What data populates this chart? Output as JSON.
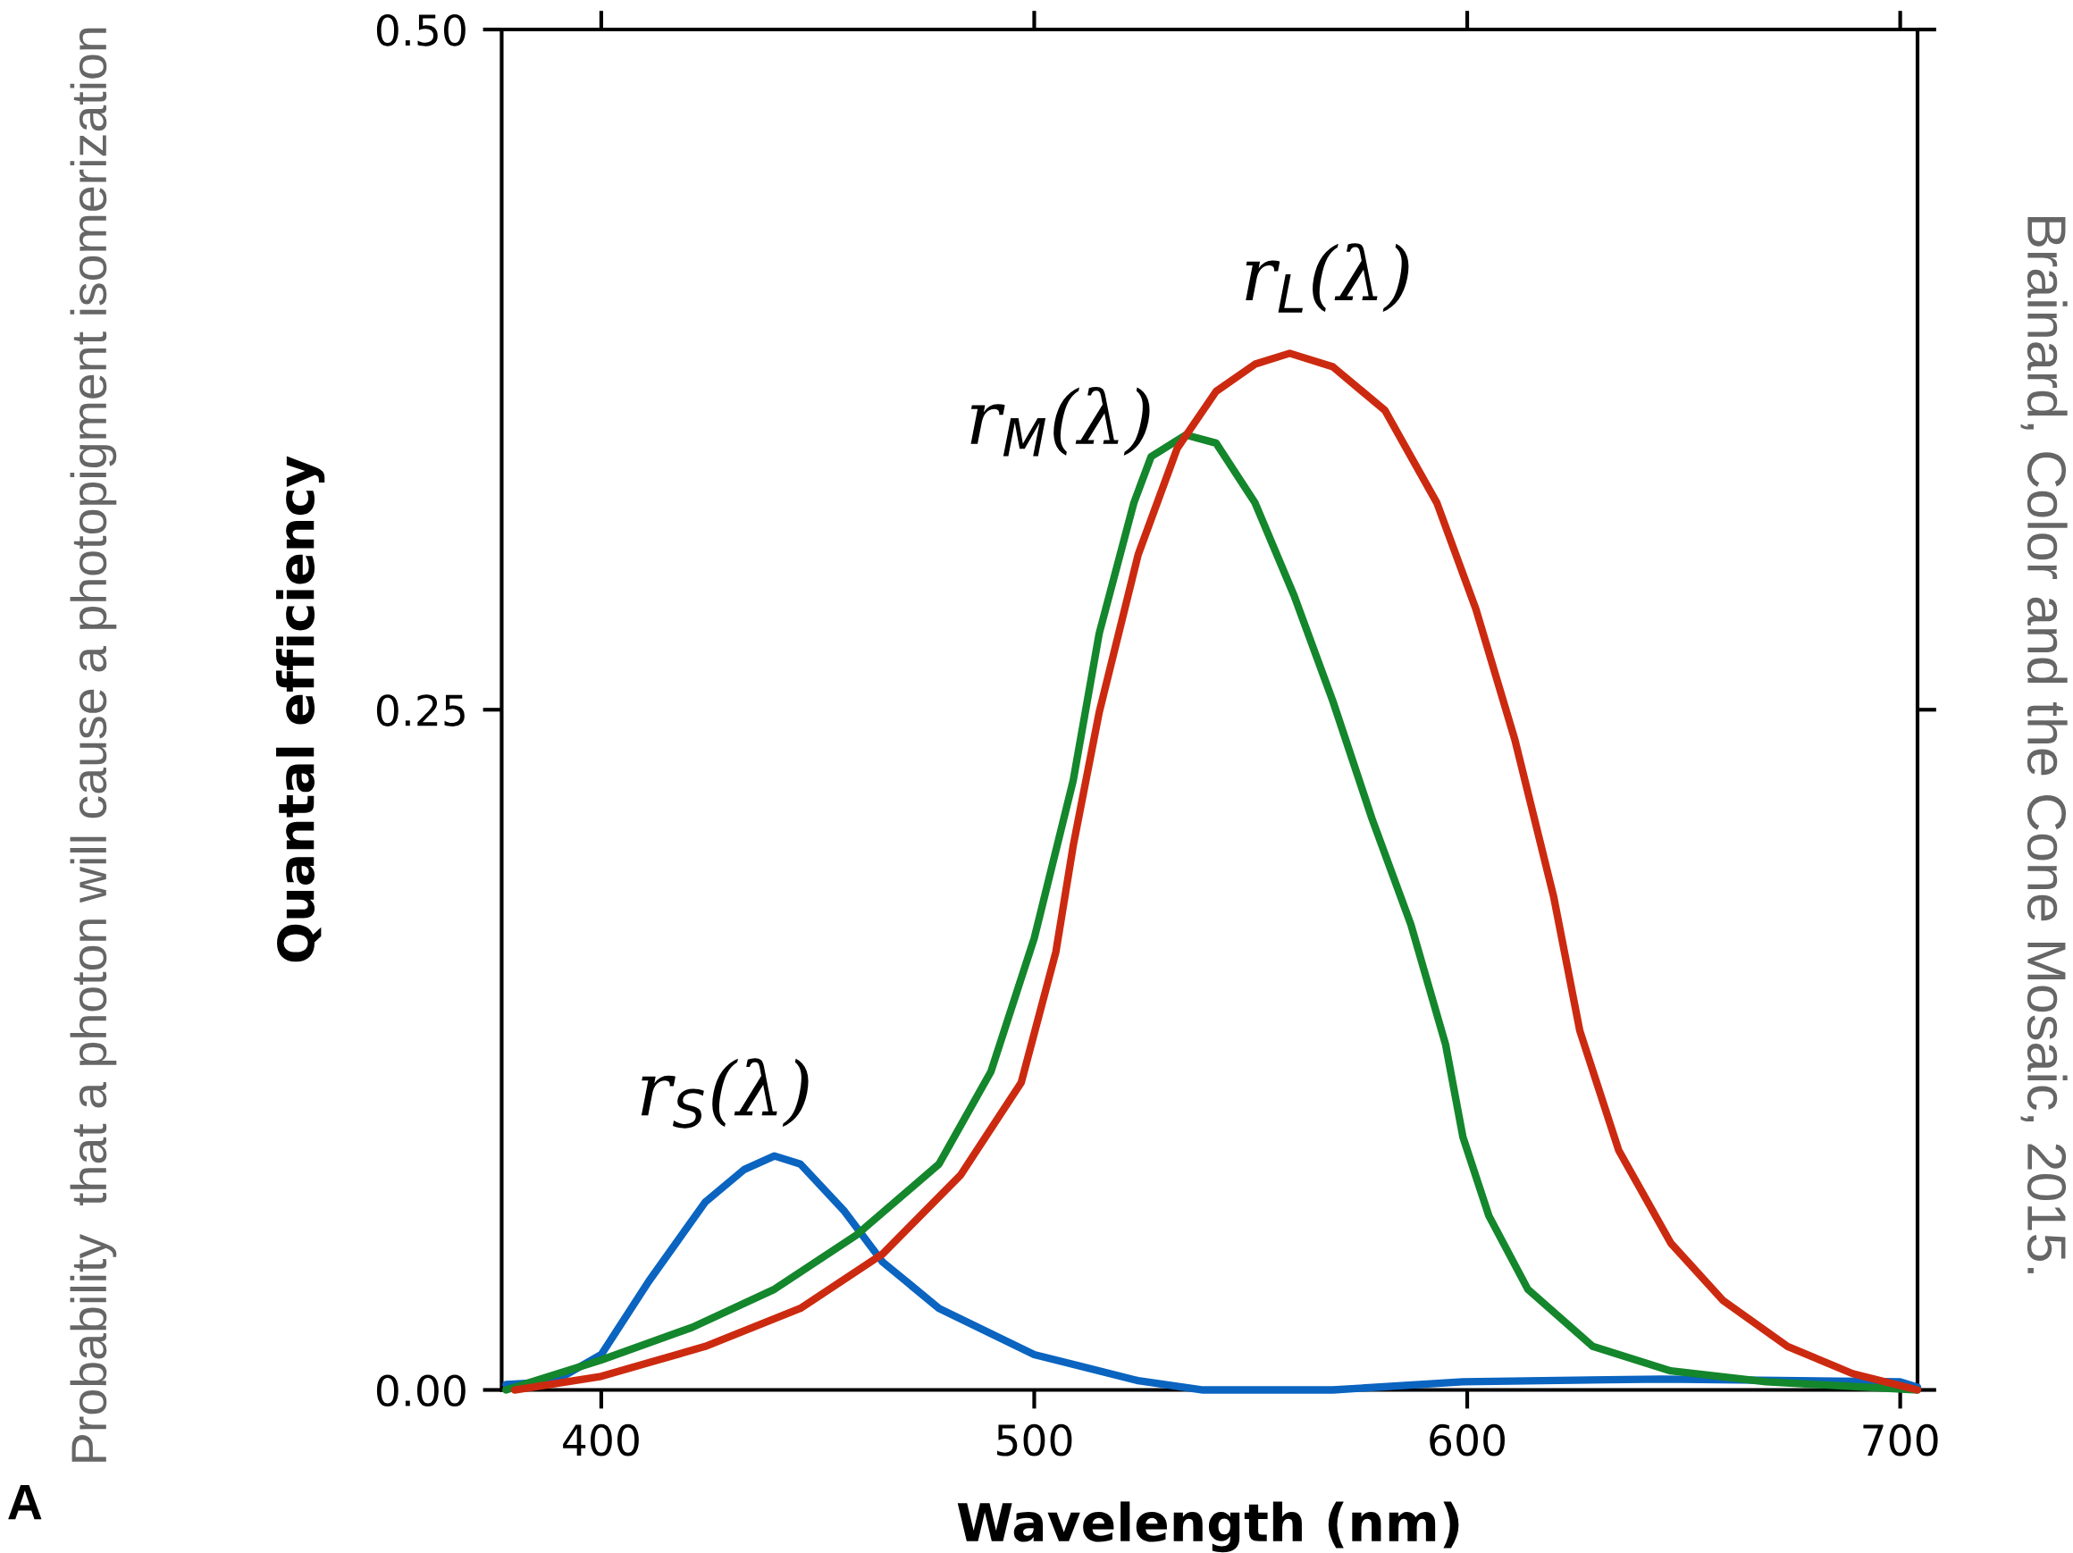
{
  "chart_data": {
    "type": "line",
    "xlabel": "Wavelength (nm)",
    "ylabel": "Quantal efficiency",
    "xlim": [
      377,
      704
    ],
    "ylim": [
      0,
      0.5
    ],
    "xticks": [
      400,
      500,
      600,
      700
    ],
    "yticks": [
      {
        "value": 0,
        "label": "0.00"
      },
      {
        "value": 0.25,
        "label": "0.25"
      },
      {
        "value": 0.5,
        "label": "0.50"
      }
    ],
    "grid": false,
    "legend": false,
    "marker": "none",
    "line_style": "solid",
    "annotations": [
      "Probability  that a photon will cause a photopigment isomerization",
      "Brainard, Color and the Cone Mosaic, 2015.",
      "A"
    ],
    "series": [
      {
        "name": "r$_{S}$(λ)",
        "color": "#0a64c0",
        "x": [
          378,
          389,
          400,
          411,
          424,
          433,
          440,
          446,
          456,
          465,
          478,
          500,
          524,
          539,
          569,
          599,
          645,
          700,
          704
        ],
        "values": [
          0.002,
          0.003,
          0.013,
          0.04,
          0.069,
          0.081,
          0.086,
          0.083,
          0.066,
          0.047,
          0.03,
          0.013,
          0.0034,
          0,
          0,
          0.003,
          0.004,
          0.003,
          0.001
        ]
      },
      {
        "name": "r$_{M}$(λ)",
        "color": "#14862c",
        "x": [
          378,
          400,
          421,
          440,
          459,
          478,
          490,
          500,
          509,
          515,
          523,
          527,
          535,
          542,
          551,
          560,
          569,
          578,
          587,
          595,
          599,
          605,
          614,
          629,
          647,
          669,
          704
        ],
        "values": [
          0,
          0.011,
          0.023,
          0.037,
          0.057,
          0.083,
          0.117,
          0.166,
          0.224,
          0.278,
          0.326,
          0.343,
          0.351,
          0.348,
          0.326,
          0.292,
          0.253,
          0.21,
          0.171,
          0.127,
          0.093,
          0.064,
          0.037,
          0.016,
          0.007,
          0.003,
          0
        ]
      },
      {
        "name": "r$_{L}$(λ)",
        "color": "#cc2a10",
        "x": [
          380,
          400,
          424,
          446,
          465,
          483,
          497,
          505,
          509,
          515,
          524,
          533,
          542,
          551,
          559,
          569,
          581,
          593,
          602,
          611,
          620,
          626,
          635,
          647,
          659,
          674,
          689,
          704
        ],
        "values": [
          0,
          0.005,
          0.016,
          0.03,
          0.05,
          0.079,
          0.113,
          0.161,
          0.2,
          0.249,
          0.307,
          0.346,
          0.367,
          0.377,
          0.381,
          0.376,
          0.36,
          0.326,
          0.287,
          0.239,
          0.181,
          0.132,
          0.088,
          0.054,
          0.033,
          0.016,
          0.006,
          0
        ]
      }
    ]
  }
}
